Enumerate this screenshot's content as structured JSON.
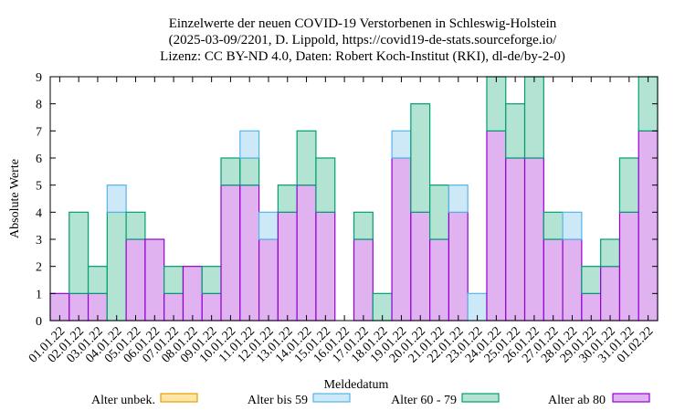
{
  "chart_data": {
    "type": "bar",
    "stacked": true,
    "title_lines": [
      "Einzelwerte der neuen COVID-19 Verstorbenen in Schleswig-Holstein",
      "(2025-03-09/2201, D. Lippold, https://covid19-de-stats.sourceforge.io/",
      "Lizenz: CC BY-ND 4.0, Daten: Robert Koch-Institut (RKI), dl-de/by-2-0)"
    ],
    "xlabel": "Meldedatum",
    "ylabel": "Absolute Werte",
    "ylim": [
      0,
      9
    ],
    "yticks": [
      0,
      1,
      2,
      3,
      4,
      5,
      6,
      7,
      8,
      9
    ],
    "grid": false,
    "legend_position": "bottom",
    "categories": [
      "01.01.22",
      "02.01.22",
      "03.01.22",
      "04.01.22",
      "05.01.22",
      "06.01.22",
      "07.01.22",
      "08.01.22",
      "09.01.22",
      "10.01.22",
      "11.01.22",
      "12.01.22",
      "13.01.22",
      "14.01.22",
      "15.01.22",
      "16.01.22",
      "17.01.22",
      "18.01.22",
      "19.01.22",
      "20.01.22",
      "21.01.22",
      "22.01.22",
      "23.01.22",
      "24.01.22",
      "25.01.22",
      "26.01.22",
      "27.01.22",
      "28.01.22",
      "29.01.22",
      "30.01.22",
      "31.01.22",
      "01.02.22"
    ],
    "series": [
      {
        "name": "Alter ab 80",
        "fill": "#e0b3f0",
        "stroke": "#9400d3",
        "values": [
          1,
          1,
          1,
          0,
          3,
          3,
          1,
          2,
          1,
          5,
          5,
          3,
          4,
          5,
          4,
          0,
          3,
          0,
          6,
          4,
          3,
          4,
          0,
          7,
          6,
          6,
          3,
          3,
          1,
          2,
          4,
          7
        ]
      },
      {
        "name": "Alter 60 - 79",
        "fill": "#b3e3d3",
        "stroke": "#009e73",
        "values": [
          0,
          3,
          1,
          4,
          1,
          0,
          1,
          0,
          1,
          1,
          1,
          0,
          1,
          2,
          2,
          0,
          1,
          1,
          0,
          4,
          2,
          0,
          0,
          2,
          2,
          3,
          1,
          0,
          1,
          1,
          2,
          2
        ]
      },
      {
        "name": "Alter bis 59",
        "fill": "#cde8f7",
        "stroke": "#56b4e9",
        "values": [
          0,
          0,
          0,
          1,
          0,
          0,
          0,
          0,
          0,
          0,
          1,
          1,
          0,
          0,
          0,
          0,
          0,
          0,
          1,
          0,
          0,
          1,
          1,
          0,
          0,
          0,
          0,
          1,
          0,
          0,
          0,
          0
        ]
      },
      {
        "name": "Alter unbek.",
        "fill": "#fde6a8",
        "stroke": "#e69f00",
        "values": [
          0,
          0,
          0,
          0,
          0,
          0,
          0,
          0,
          0,
          0,
          0,
          0,
          0,
          0,
          0,
          0,
          0,
          0,
          0,
          0,
          0,
          0,
          0,
          0,
          0,
          0,
          0,
          0,
          0,
          0,
          0,
          0
        ]
      }
    ],
    "legend_order": [
      "Alter unbek.",
      "Alter bis 59",
      "Alter 60 - 79",
      "Alter ab 80"
    ]
  }
}
